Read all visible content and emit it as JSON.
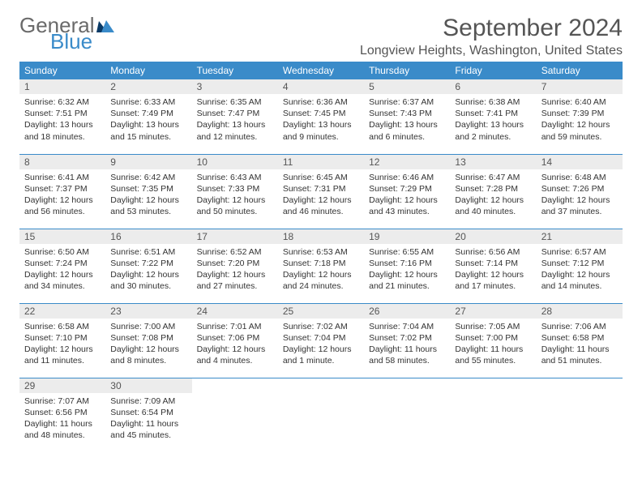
{
  "brand": {
    "general": "General",
    "blue": "Blue"
  },
  "title": "September 2024",
  "location": "Longview Heights, Washington, United States",
  "colors": {
    "accent": "#3a8bc9",
    "dayNumBg": "#ececec",
    "text": "#333",
    "muted": "#555"
  },
  "dow": [
    "Sunday",
    "Monday",
    "Tuesday",
    "Wednesday",
    "Thursday",
    "Friday",
    "Saturday"
  ],
  "days": [
    {
      "n": "1",
      "sr": "Sunrise: 6:32 AM",
      "ss": "Sunset: 7:51 PM",
      "d1": "Daylight: 13 hours",
      "d2": "and 18 minutes."
    },
    {
      "n": "2",
      "sr": "Sunrise: 6:33 AM",
      "ss": "Sunset: 7:49 PM",
      "d1": "Daylight: 13 hours",
      "d2": "and 15 minutes."
    },
    {
      "n": "3",
      "sr": "Sunrise: 6:35 AM",
      "ss": "Sunset: 7:47 PM",
      "d1": "Daylight: 13 hours",
      "d2": "and 12 minutes."
    },
    {
      "n": "4",
      "sr": "Sunrise: 6:36 AM",
      "ss": "Sunset: 7:45 PM",
      "d1": "Daylight: 13 hours",
      "d2": "and 9 minutes."
    },
    {
      "n": "5",
      "sr": "Sunrise: 6:37 AM",
      "ss": "Sunset: 7:43 PM",
      "d1": "Daylight: 13 hours",
      "d2": "and 6 minutes."
    },
    {
      "n": "6",
      "sr": "Sunrise: 6:38 AM",
      "ss": "Sunset: 7:41 PM",
      "d1": "Daylight: 13 hours",
      "d2": "and 2 minutes."
    },
    {
      "n": "7",
      "sr": "Sunrise: 6:40 AM",
      "ss": "Sunset: 7:39 PM",
      "d1": "Daylight: 12 hours",
      "d2": "and 59 minutes."
    },
    {
      "n": "8",
      "sr": "Sunrise: 6:41 AM",
      "ss": "Sunset: 7:37 PM",
      "d1": "Daylight: 12 hours",
      "d2": "and 56 minutes."
    },
    {
      "n": "9",
      "sr": "Sunrise: 6:42 AM",
      "ss": "Sunset: 7:35 PM",
      "d1": "Daylight: 12 hours",
      "d2": "and 53 minutes."
    },
    {
      "n": "10",
      "sr": "Sunrise: 6:43 AM",
      "ss": "Sunset: 7:33 PM",
      "d1": "Daylight: 12 hours",
      "d2": "and 50 minutes."
    },
    {
      "n": "11",
      "sr": "Sunrise: 6:45 AM",
      "ss": "Sunset: 7:31 PM",
      "d1": "Daylight: 12 hours",
      "d2": "and 46 minutes."
    },
    {
      "n": "12",
      "sr": "Sunrise: 6:46 AM",
      "ss": "Sunset: 7:29 PM",
      "d1": "Daylight: 12 hours",
      "d2": "and 43 minutes."
    },
    {
      "n": "13",
      "sr": "Sunrise: 6:47 AM",
      "ss": "Sunset: 7:28 PM",
      "d1": "Daylight: 12 hours",
      "d2": "and 40 minutes."
    },
    {
      "n": "14",
      "sr": "Sunrise: 6:48 AM",
      "ss": "Sunset: 7:26 PM",
      "d1": "Daylight: 12 hours",
      "d2": "and 37 minutes."
    },
    {
      "n": "15",
      "sr": "Sunrise: 6:50 AM",
      "ss": "Sunset: 7:24 PM",
      "d1": "Daylight: 12 hours",
      "d2": "and 34 minutes."
    },
    {
      "n": "16",
      "sr": "Sunrise: 6:51 AM",
      "ss": "Sunset: 7:22 PM",
      "d1": "Daylight: 12 hours",
      "d2": "and 30 minutes."
    },
    {
      "n": "17",
      "sr": "Sunrise: 6:52 AM",
      "ss": "Sunset: 7:20 PM",
      "d1": "Daylight: 12 hours",
      "d2": "and 27 minutes."
    },
    {
      "n": "18",
      "sr": "Sunrise: 6:53 AM",
      "ss": "Sunset: 7:18 PM",
      "d1": "Daylight: 12 hours",
      "d2": "and 24 minutes."
    },
    {
      "n": "19",
      "sr": "Sunrise: 6:55 AM",
      "ss": "Sunset: 7:16 PM",
      "d1": "Daylight: 12 hours",
      "d2": "and 21 minutes."
    },
    {
      "n": "20",
      "sr": "Sunrise: 6:56 AM",
      "ss": "Sunset: 7:14 PM",
      "d1": "Daylight: 12 hours",
      "d2": "and 17 minutes."
    },
    {
      "n": "21",
      "sr": "Sunrise: 6:57 AM",
      "ss": "Sunset: 7:12 PM",
      "d1": "Daylight: 12 hours",
      "d2": "and 14 minutes."
    },
    {
      "n": "22",
      "sr": "Sunrise: 6:58 AM",
      "ss": "Sunset: 7:10 PM",
      "d1": "Daylight: 12 hours",
      "d2": "and 11 minutes."
    },
    {
      "n": "23",
      "sr": "Sunrise: 7:00 AM",
      "ss": "Sunset: 7:08 PM",
      "d1": "Daylight: 12 hours",
      "d2": "and 8 minutes."
    },
    {
      "n": "24",
      "sr": "Sunrise: 7:01 AM",
      "ss": "Sunset: 7:06 PM",
      "d1": "Daylight: 12 hours",
      "d2": "and 4 minutes."
    },
    {
      "n": "25",
      "sr": "Sunrise: 7:02 AM",
      "ss": "Sunset: 7:04 PM",
      "d1": "Daylight: 12 hours",
      "d2": "and 1 minute."
    },
    {
      "n": "26",
      "sr": "Sunrise: 7:04 AM",
      "ss": "Sunset: 7:02 PM",
      "d1": "Daylight: 11 hours",
      "d2": "and 58 minutes."
    },
    {
      "n": "27",
      "sr": "Sunrise: 7:05 AM",
      "ss": "Sunset: 7:00 PM",
      "d1": "Daylight: 11 hours",
      "d2": "and 55 minutes."
    },
    {
      "n": "28",
      "sr": "Sunrise: 7:06 AM",
      "ss": "Sunset: 6:58 PM",
      "d1": "Daylight: 11 hours",
      "d2": "and 51 minutes."
    },
    {
      "n": "29",
      "sr": "Sunrise: 7:07 AM",
      "ss": "Sunset: 6:56 PM",
      "d1": "Daylight: 11 hours",
      "d2": "and 48 minutes."
    },
    {
      "n": "30",
      "sr": "Sunrise: 7:09 AM",
      "ss": "Sunset: 6:54 PM",
      "d1": "Daylight: 11 hours",
      "d2": "and 45 minutes."
    }
  ]
}
